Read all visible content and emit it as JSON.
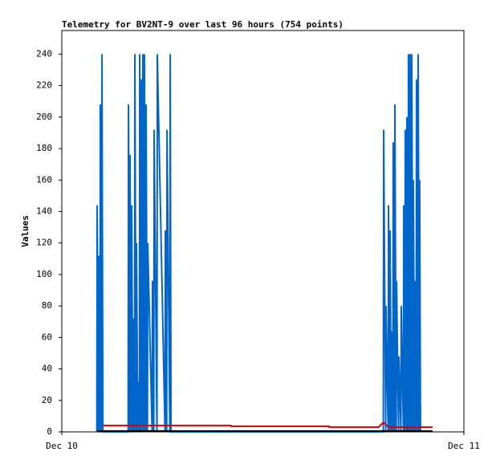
{
  "chart_data": {
    "type": "line",
    "title": "Telemetry for BV2NT-9 over last 96 hours (754 points)",
    "ylabel": "Values",
    "xlim": [
      0,
      24
    ],
    "xticks": [
      {
        "value": 0,
        "label": "Dec 10"
      },
      {
        "value": 24,
        "label": "Dec 11"
      }
    ],
    "ylim": [
      0,
      255
    ],
    "yticks": [
      0,
      20,
      40,
      60,
      80,
      100,
      120,
      140,
      160,
      180,
      200,
      220,
      240
    ],
    "series": [
      {
        "color": "#0066cc",
        "x": [
          2.09,
          2.11,
          2.18,
          2.2,
          2.28,
          2.3,
          2.38,
          2.4,
          2.45,
          3.96,
          3.98,
          4.05,
          4.07,
          4.15,
          4.17,
          4.24,
          4.26,
          4.34,
          4.36,
          4.44,
          4.46,
          4.53,
          4.55,
          4.63,
          4.65,
          4.72,
          4.74,
          4.82,
          4.84,
          4.91,
          4.93,
          5.01,
          5.03,
          5.11,
          5.13,
          5.39,
          5.41,
          5.49,
          5.51,
          5.68,
          5.7,
          6.16,
          6.18,
          6.26,
          6.28,
          6.45,
          6.47,
          6.52,
          19.19,
          19.21,
          19.33,
          19.35,
          19.48,
          19.5,
          19.57,
          19.59,
          19.67,
          19.69,
          19.76,
          19.78,
          19.86,
          19.88,
          19.96,
          19.98,
          20.1,
          20.12,
          20.24,
          20.26,
          20.39,
          20.41,
          20.48,
          20.5,
          20.58,
          20.6,
          20.67,
          20.69,
          20.77,
          20.79,
          20.87,
          20.89,
          20.96,
          20.98,
          21.06,
          21.08,
          21.15,
          21.17,
          21.25,
          21.27,
          21.34,
          21.36,
          21.41
        ],
        "values": [
          0,
          144,
          0,
          112,
          0,
          208,
          0,
          240,
          0,
          0,
          208,
          0,
          176,
          0,
          144,
          0,
          72,
          0,
          240,
          0,
          120,
          0,
          32,
          0,
          240,
          0,
          224,
          0,
          240,
          0,
          240,
          0,
          208,
          0,
          120,
          0,
          96,
          0,
          192,
          0,
          240,
          0,
          128,
          0,
          192,
          0,
          240,
          0,
          0,
          192,
          0,
          80,
          0,
          144,
          0,
          128,
          0,
          64,
          0,
          184,
          0,
          208,
          0,
          96,
          0,
          48,
          0,
          80,
          0,
          144,
          0,
          192,
          0,
          200,
          0,
          240,
          0,
          240,
          0,
          240,
          0,
          160,
          0,
          96,
          0,
          224,
          0,
          240,
          0,
          160,
          0
        ]
      },
      {
        "color": "#dd0000",
        "x": [
          2.45,
          10.1,
          10.11,
          15.95,
          15.96,
          18.9,
          19.2,
          19.5,
          22.13
        ],
        "values": [
          4,
          4,
          3.5,
          3.5,
          3,
          3,
          6,
          3,
          3
        ]
      },
      {
        "color": "#000000",
        "x": [
          2.11,
          22.13
        ],
        "values": [
          0.5,
          0.5
        ]
      }
    ]
  }
}
